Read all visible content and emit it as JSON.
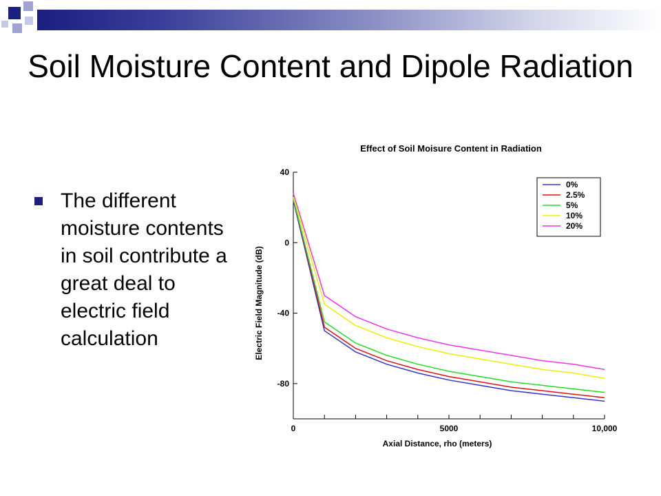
{
  "slide": {
    "title": "Soil Moisture Content and Dipole Radiation",
    "bullet": "The different moisture contents in soil contribute a great deal to electric field calculation",
    "colors": {
      "accent": "#1a1f80",
      "square_light": "#9ea2d4"
    }
  },
  "chart_data": {
    "type": "line",
    "title": "Effect of Soil Moisure Content in Radiation",
    "xlabel": "Axial Distance, rho (meters)",
    "ylabel": "Electric Field Magnitude (dB)",
    "xlim": [
      0,
      10000
    ],
    "ylim": [
      -100,
      40
    ],
    "x_ticks": [
      {
        "value": 0,
        "label": "0"
      },
      {
        "value": 5000,
        "label": "5000"
      },
      {
        "value": 10000,
        "label": "10,000"
      }
    ],
    "y_ticks": [
      {
        "value": 40,
        "label": "40"
      },
      {
        "value": 0,
        "label": "0"
      },
      {
        "value": -40,
        "label": "-40"
      },
      {
        "value": -80,
        "label": "-80"
      }
    ],
    "grid": false,
    "legend_position": "top-right",
    "x": [
      0,
      1000,
      2000,
      3000,
      4000,
      5000,
      6000,
      7000,
      8000,
      9000,
      10000
    ],
    "series": [
      {
        "name": "0%",
        "color": "#3333cc",
        "values": [
          24,
          -50,
          -62,
          -69,
          -74,
          -78,
          -81,
          -84,
          -86,
          -88,
          -90
        ]
      },
      {
        "name": "2.5%",
        "color": "#e01010",
        "values": [
          25,
          -48,
          -60,
          -67,
          -72,
          -76,
          -79,
          -82,
          -84,
          -86,
          -88
        ]
      },
      {
        "name": "5%",
        "color": "#22dd22",
        "values": [
          25,
          -45,
          -57,
          -64,
          -69,
          -73,
          -76,
          -79,
          -81,
          -83,
          -85
        ]
      },
      {
        "name": "10%",
        "color": "#eeee00",
        "values": [
          26,
          -35,
          -47,
          -54,
          -59,
          -63,
          -66,
          -69,
          -72,
          -74,
          -77
        ]
      },
      {
        "name": "20%",
        "color": "#ee33ee",
        "values": [
          28,
          -30,
          -42,
          -49,
          -54,
          -58,
          -61,
          -64,
          -67,
          -69,
          -72
        ]
      }
    ]
  }
}
